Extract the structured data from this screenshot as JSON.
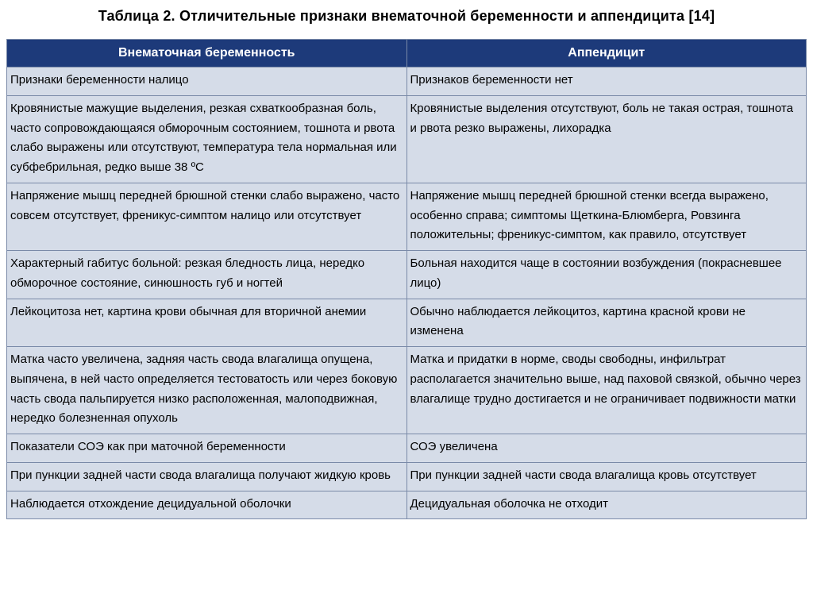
{
  "title": "Таблица 2. Отличительные признаки внематочной беременности и аппендицита [14]",
  "table": {
    "type": "table",
    "background_color": "#ffffff",
    "header_bg": "#1d3a7a",
    "header_fg": "#ffffff",
    "cell_bg": "#d5dce8",
    "cell_fg": "#000000",
    "border_color": "#7a8aa8",
    "title_fontsize": 18,
    "header_fontsize": 16,
    "cell_fontsize": 15,
    "columns": [
      "Внематочная беременность",
      "Аппендицит"
    ],
    "col_widths_pct": [
      50,
      50
    ],
    "rows": [
      {
        "left": "Признаки беременности налицо",
        "right": "Признаков беременности нет"
      },
      {
        "left": "Кровянистые мажущие выделения, резкая схваткообразная боль, часто сопровождающаяся обморочным состоянием, тошнота и рвота слабо выражены или отсутствуют, температура тела нормальная или субфебрильная, редко выше 38 ºС",
        "right": "Кровянистые выделения отсутствуют, боль не такая острая, тошнота и рвота резко выражены, лихорадка"
      },
      {
        "left": "Напряжение мышц передней брюшной стенки слабо выражено, часто совсем отсутствует, френикус-симптом налицо или отсутствует",
        "right": "Напряжение мышц передней брюшной стенки всегда выражено, особенно справа; симптомы Щеткина-Блюмберга, Ровзинга положительны; френикус-симптом, как правило, отсутствует"
      },
      {
        "left": "Характерный габитус больной: резкая бледность лица, нередко обморочное состояние, синюшность губ и  ногтей",
        "right": "Больная находится чаще в состоянии возбуждения (покрасневшее лицо)"
      },
      {
        "left": "Лейкоцитоза нет, картина крови обычная для вторичной анемии",
        "right": "Обычно наблюдается лейкоцитоз, картина красной крови не изменена"
      },
      {
        "left": "Матка часто увеличена, задняя часть свода влагалища опущена, выпячена, в ней часто определяется тестоватость  или через боковую часть свода пальпируется низко расположенная, малоподвижная, нередко болезненная опухоль",
        "right": "Матка и придатки в норме, своды свободны, инфильтрат располагается значительно выше, над паховой связкой, обычно через влагалище трудно достигается и не ограничивает подвижности матки"
      },
      {
        "left": "Показатели СОЭ как при маточной беременности",
        "right": "СОЭ увеличена"
      },
      {
        "left": "При пункции задней части свода влагалища получают жидкую кровь",
        "right": "При пункции задней части свода влагалища кровь отсутствует"
      },
      {
        "left": "Наблюдается отхождение децидуальной оболочки",
        "right": "Децидуальная оболочка не отходит"
      }
    ]
  }
}
